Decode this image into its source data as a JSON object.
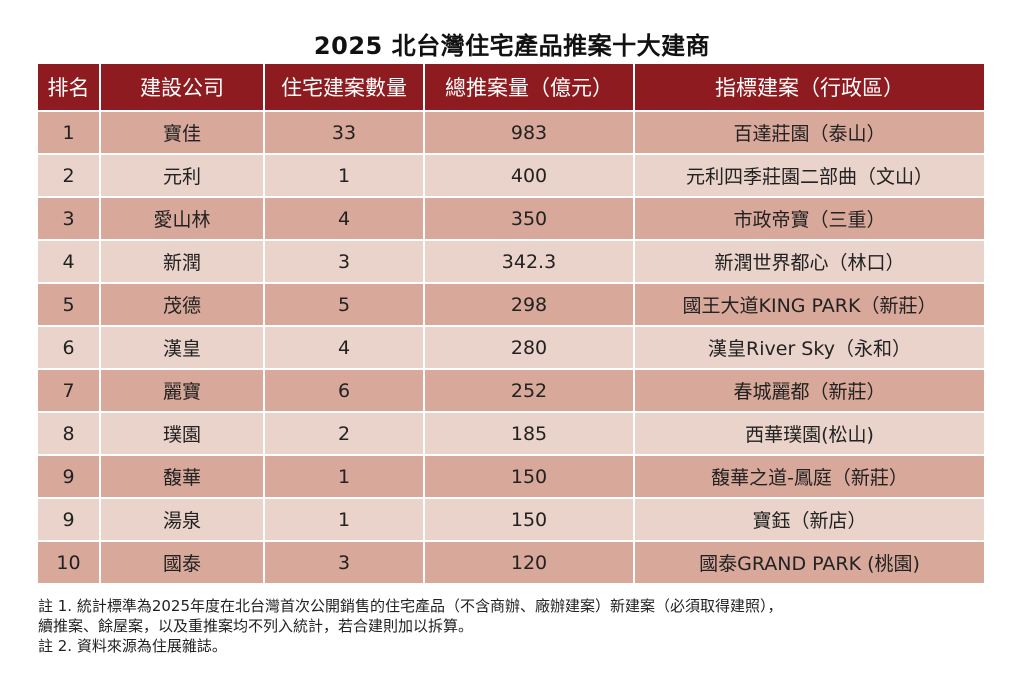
{
  "title": "2025 北台灣住宅產品推案十大建商",
  "table": {
    "headers": [
      "排名",
      "建設公司",
      "住宅建案數量",
      "總推案量（億元）",
      "指標建案（行政區）"
    ],
    "rows": [
      [
        "1",
        "寶佳",
        "33",
        "983",
        "百達莊園（泰山）"
      ],
      [
        "2",
        "元利",
        "1",
        "400",
        "元利四季莊園二部曲（文山）"
      ],
      [
        "3",
        "愛山林",
        "4",
        "350",
        "市政帝寶（三重）"
      ],
      [
        "4",
        "新潤",
        "3",
        "342.3",
        "新潤世界都心（林口）"
      ],
      [
        "5",
        "茂德",
        "5",
        "298",
        "國王大道KING PARK（新莊）"
      ],
      [
        "6",
        "漢皇",
        "4",
        "280",
        "漢皇River Sky（永和）"
      ],
      [
        "7",
        "麗寶",
        "6",
        "252",
        "春城麗都（新莊）"
      ],
      [
        "8",
        "璞園",
        "2",
        "185",
        "西華璞園(松山)"
      ],
      [
        "9",
        "馥華",
        "1",
        "150",
        "馥華之道-鳳庭（新莊）"
      ],
      [
        "9",
        "湯泉",
        "1",
        "150",
        "寶鈺（新店）"
      ],
      [
        "10",
        "國泰",
        "3",
        "120",
        "國泰GRAND PARK (桃園)"
      ]
    ]
  },
  "notes": [
    "註 1. 統計標準為2025年度在北台灣首次公開銷售的住宅產品（不含商辦、廠辦建案）新建案（必須取得建照），",
    "續推案、餘屋案，以及重推案均不列入統計，若合建則加以拆算。",
    "註 2. 資料來源為住展雜誌。"
  ],
  "colors": {
    "header_bg": "#8e1b1f",
    "row_dark": "#d8a89a",
    "row_light": "#ead3cb"
  }
}
